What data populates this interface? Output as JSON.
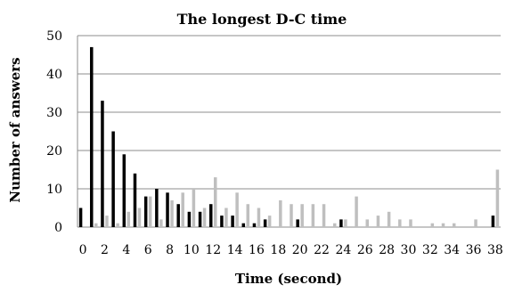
{
  "chart_data": {
    "type": "bar",
    "title": "The longest D-C time",
    "xlabel": "Time (second)",
    "ylabel": "Number of answers",
    "ylim": [
      0,
      50
    ],
    "yticks": [
      0,
      10,
      20,
      30,
      40,
      50
    ],
    "grid": true,
    "legend": "none",
    "x": [
      0,
      1,
      2,
      3,
      4,
      5,
      6,
      7,
      8,
      9,
      10,
      11,
      12,
      13,
      14,
      15,
      16,
      17,
      18,
      19,
      20,
      21,
      22,
      23,
      24,
      25,
      26,
      27,
      28,
      29,
      30,
      31,
      32,
      33,
      34,
      35,
      36,
      37,
      38
    ],
    "xticks": [
      0,
      2,
      4,
      6,
      8,
      10,
      12,
      14,
      16,
      18,
      20,
      22,
      24,
      26,
      28,
      30,
      32,
      34,
      36,
      38
    ],
    "xtick_labels": [
      "0",
      "2",
      "4",
      "6",
      "8",
      "10",
      "12",
      "14",
      "16",
      "18",
      "20",
      "22",
      "24",
      "26",
      "28",
      "30",
      "32",
      "34",
      "36",
      "38"
    ],
    "series": [
      {
        "color": "#000000",
        "values": [
          5,
          47,
          33,
          25,
          19,
          14,
          8,
          10,
          9,
          6,
          4,
          4,
          6,
          3,
          3,
          1,
          1,
          2,
          0,
          0,
          2,
          0,
          0,
          0,
          2,
          0,
          0,
          0,
          0,
          0,
          0,
          0,
          0,
          0,
          0,
          0,
          0,
          0,
          3
        ]
      },
      {
        "color": "#bfbfbf",
        "values": [
          0,
          1,
          3,
          1,
          4,
          5,
          8,
          2,
          7,
          9,
          10,
          5,
          13,
          5,
          9,
          6,
          5,
          3,
          7,
          6,
          6,
          6,
          6,
          1,
          2,
          8,
          2,
          3,
          4,
          2,
          2,
          0,
          1,
          1,
          1,
          0,
          2,
          0,
          15
        ]
      }
    ]
  }
}
